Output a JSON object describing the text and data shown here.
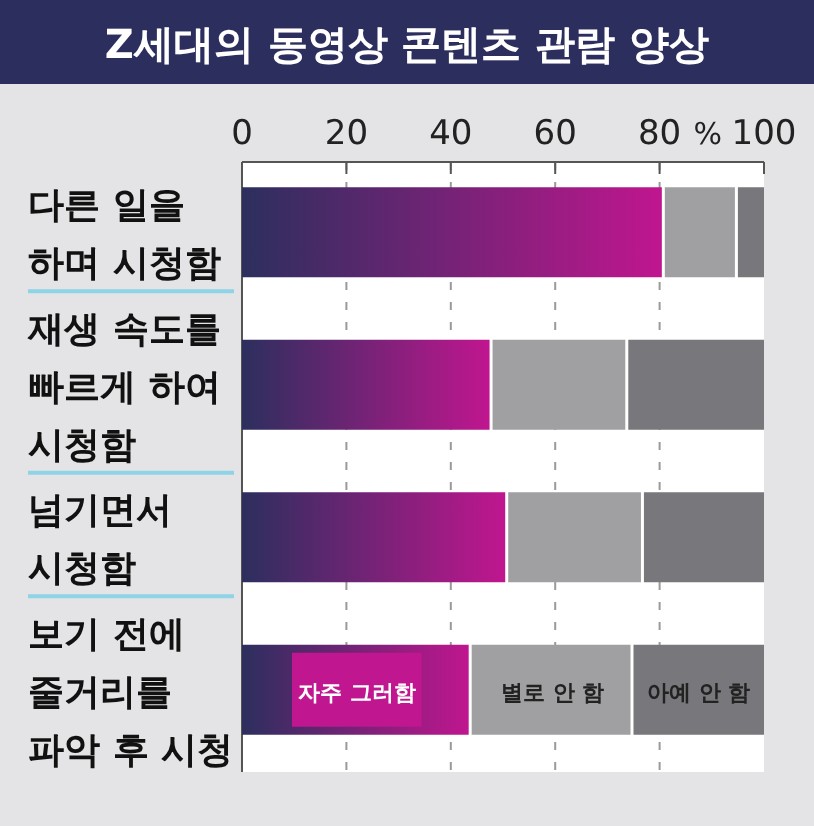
{
  "chart_data": {
    "type": "bar",
    "orientation": "horizontal",
    "stacked": true,
    "title": "Z세대의 동영상 콘텐츠 관람 양상",
    "xlabel": "%",
    "categories": [
      "다른 일을 하며 시청함",
      "재생 속도를 빠르게 하여 시청함",
      "넘기면서 시청함",
      "보기 전에 줄거리를 파악 후 시청"
    ],
    "series": [
      {
        "name": "자주 그러함",
        "color": "#c0168f",
        "values": [
          81,
          48,
          51,
          44
        ]
      },
      {
        "name": "별로 안 함",
        "color": "#a0a0a2",
        "values": [
          14,
          26,
          26,
          31
        ]
      },
      {
        "name": "아예 안 함",
        "color": "#78787c",
        "values": [
          5,
          26,
          23,
          25
        ]
      }
    ],
    "xlim": [
      0,
      100
    ],
    "xticks": [
      0,
      20,
      40,
      60,
      80,
      100
    ],
    "grid": "x"
  }
}
